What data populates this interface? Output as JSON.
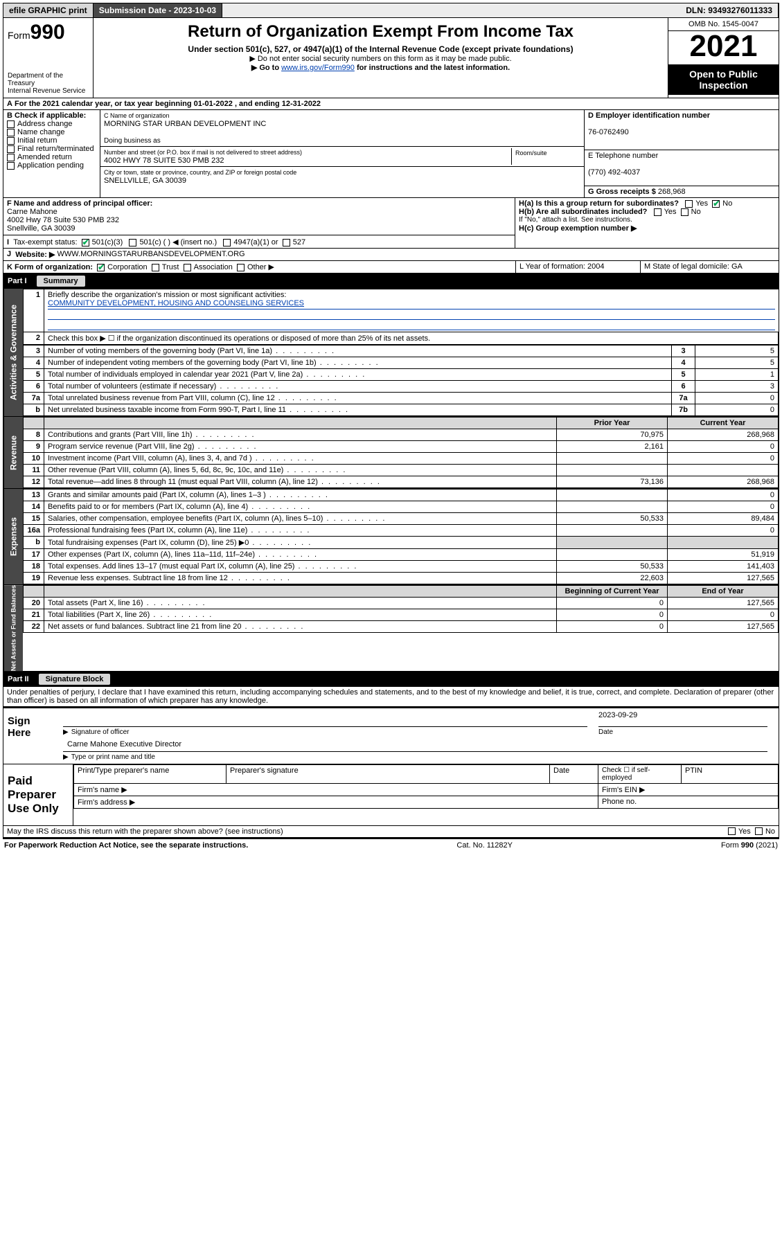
{
  "topbar": {
    "efile": "efile GRAPHIC print",
    "submission_label": "Submission Date - 2023-10-03",
    "dln": "DLN: 93493276011333"
  },
  "header": {
    "form_prefix": "Form",
    "form_number": "990",
    "dept": "Department of the Treasury",
    "irs": "Internal Revenue Service",
    "title": "Return of Organization Exempt From Income Tax",
    "subtitle": "Under section 501(c), 527, or 4947(a)(1) of the Internal Revenue Code (except private foundations)",
    "note1": "▶ Do not enter social security numbers on this form as it may be made public.",
    "note2_a": "▶ Go to ",
    "note2_link": "www.irs.gov/Form990",
    "note2_b": " for instructions and the latest information.",
    "omb": "OMB No. 1545-0047",
    "year": "2021",
    "inspection": "Open to Public Inspection"
  },
  "section_a": {
    "line_a": "For the 2021 calendar year, or tax year beginning 01-01-2022 , and ending 12-31-2022",
    "b_label": "B Check if applicable:",
    "b_items": [
      "Address change",
      "Name change",
      "Initial return",
      "Final return/terminated",
      "Amended return",
      "Application pending"
    ],
    "c_label": "C Name of organization",
    "c_name": "MORNING STAR URBAN DEVELOPMENT INC",
    "dba_label": "Doing business as",
    "addr_label": "Number and street (or P.O. box if mail is not delivered to street address)",
    "room_label": "Room/suite",
    "addr": "4002 HWY 78 SUITE 530 PMB 232",
    "city_label": "City or town, state or province, country, and ZIP or foreign postal code",
    "city": "SNELLVILLE, GA  30039",
    "d_label": "D Employer identification number",
    "ein": "76-0762490",
    "e_label": "E Telephone number",
    "phone": "(770) 492-4037",
    "g_label": "G Gross receipts $",
    "g_val": "268,968",
    "f_label": "F Name and address of principal officer:",
    "f_name": "Carne Mahone",
    "f_addr1": "4002 Hwy 78 Suite 530 PMB 232",
    "f_addr2": "Snellville, GA  30039",
    "ha": "H(a) Is this a group return for subordinates?",
    "hb": "H(b) Are all subordinates included?",
    "hb_note": "If \"No,\" attach a list. See instructions.",
    "hc": "H(c) Group exemption number ▶",
    "i_label": "Tax-exempt status:",
    "i_501c3": "501(c)(3)",
    "i_501c": "501(c) (  ) ◀ (insert no.)",
    "i_4947": "4947(a)(1) or",
    "i_527": "527",
    "j_label": "Website: ▶",
    "j_val": "WWW.MORNINGSTARURBANSDEVELOPMENT.ORG",
    "k_label": "K Form of organization:",
    "k_items": [
      "Corporation",
      "Trust",
      "Association",
      "Other ▶"
    ],
    "l_label": "L Year of formation: 2004",
    "m_label": "M State of legal domicile: GA"
  },
  "part1": {
    "label": "Part I",
    "title": "Summary",
    "l1": "Briefly describe the organization's mission or most significant activities:",
    "l1_val": "COMMUNITY DEVELOPMENT, HOUSING AND COUNSELING SERVICES",
    "l2": "Check this box ▶ ☐  if the organization discontinued its operations or disposed of more than 25% of its net assets.",
    "governance_rows": [
      {
        "n": "3",
        "t": "Number of voting members of the governing body (Part VI, line 1a)",
        "box": "3",
        "v": "5"
      },
      {
        "n": "4",
        "t": "Number of independent voting members of the governing body (Part VI, line 1b)",
        "box": "4",
        "v": "5"
      },
      {
        "n": "5",
        "t": "Total number of individuals employed in calendar year 2021 (Part V, line 2a)",
        "box": "5",
        "v": "1"
      },
      {
        "n": "6",
        "t": "Total number of volunteers (estimate if necessary)",
        "box": "6",
        "v": "3"
      },
      {
        "n": "7a",
        "t": "Total unrelated business revenue from Part VIII, column (C), line 12",
        "box": "7a",
        "v": "0"
      },
      {
        "n": "b",
        "t": "Net unrelated business taxable income from Form 990-T, Part I, line 11",
        "box": "7b",
        "v": "0"
      }
    ],
    "col_prior": "Prior Year",
    "col_current": "Current Year",
    "col_beg": "Beginning of Current Year",
    "col_end": "End of Year",
    "revenue_rows": [
      {
        "n": "8",
        "t": "Contributions and grants (Part VIII, line 1h)",
        "p": "70,975",
        "c": "268,968"
      },
      {
        "n": "9",
        "t": "Program service revenue (Part VIII, line 2g)",
        "p": "2,161",
        "c": "0"
      },
      {
        "n": "10",
        "t": "Investment income (Part VIII, column (A), lines 3, 4, and 7d )",
        "p": "",
        "c": "0"
      },
      {
        "n": "11",
        "t": "Other revenue (Part VIII, column (A), lines 5, 6d, 8c, 9c, 10c, and 11e)",
        "p": "",
        "c": ""
      },
      {
        "n": "12",
        "t": "Total revenue—add lines 8 through 11 (must equal Part VIII, column (A), line 12)",
        "p": "73,136",
        "c": "268,968"
      }
    ],
    "expense_rows": [
      {
        "n": "13",
        "t": "Grants and similar amounts paid (Part IX, column (A), lines 1–3 )",
        "p": "",
        "c": "0"
      },
      {
        "n": "14",
        "t": "Benefits paid to or for members (Part IX, column (A), line 4)",
        "p": "",
        "c": "0"
      },
      {
        "n": "15",
        "t": "Salaries, other compensation, employee benefits (Part IX, column (A), lines 5–10)",
        "p": "50,533",
        "c": "89,484"
      },
      {
        "n": "16a",
        "t": "Professional fundraising fees (Part IX, column (A), line 11e)",
        "p": "",
        "c": "0"
      },
      {
        "n": "b",
        "t": "Total fundraising expenses (Part IX, column (D), line 25) ▶0",
        "p": "shade",
        "c": "shade"
      },
      {
        "n": "17",
        "t": "Other expenses (Part IX, column (A), lines 11a–11d, 11f–24e)",
        "p": "",
        "c": "51,919"
      },
      {
        "n": "18",
        "t": "Total expenses. Add lines 13–17 (must equal Part IX, column (A), line 25)",
        "p": "50,533",
        "c": "141,403"
      },
      {
        "n": "19",
        "t": "Revenue less expenses. Subtract line 18 from line 12",
        "p": "22,603",
        "c": "127,565"
      }
    ],
    "net_rows": [
      {
        "n": "20",
        "t": "Total assets (Part X, line 16)",
        "p": "0",
        "c": "127,565"
      },
      {
        "n": "21",
        "t": "Total liabilities (Part X, line 26)",
        "p": "0",
        "c": "0"
      },
      {
        "n": "22",
        "t": "Net assets or fund balances. Subtract line 21 from line 20",
        "p": "0",
        "c": "127,565"
      }
    ],
    "vtab_gov": "Activities & Governance",
    "vtab_rev": "Revenue",
    "vtab_exp": "Expenses",
    "vtab_net": "Net Assets or Fund Balances"
  },
  "part2": {
    "label": "Part II",
    "title": "Signature Block",
    "decl": "Under penalties of perjury, I declare that I have examined this return, including accompanying schedules and statements, and to the best of my knowledge and belief, it is true, correct, and complete. Declaration of preparer (other than officer) is based on all information of which preparer has any knowledge.",
    "sign_here": "Sign Here",
    "sig_officer": "Signature of officer",
    "sig_date": "Date",
    "sig_date_val": "2023-09-29",
    "sig_name": "Carne Mahone  Executive Director",
    "sig_name_label": "Type or print name and title",
    "paid": "Paid Preparer Use Only",
    "pp_name": "Print/Type preparer's name",
    "pp_sig": "Preparer's signature",
    "pp_date": "Date",
    "pp_check": "Check ☐ if self-employed",
    "pp_ptin": "PTIN",
    "pp_firm": "Firm's name  ▶",
    "pp_ein": "Firm's EIN ▶",
    "pp_addr": "Firm's address ▶",
    "pp_phone": "Phone no.",
    "may_irs": "May the IRS discuss this return with the preparer shown above? (see instructions)"
  },
  "footer": {
    "left": "For Paperwork Reduction Act Notice, see the separate instructions.",
    "mid": "Cat. No. 11282Y",
    "right": "Form 990 (2021)"
  },
  "yes": "Yes",
  "no": "No"
}
